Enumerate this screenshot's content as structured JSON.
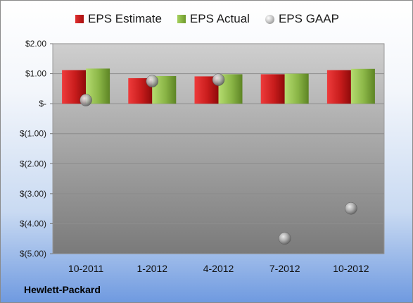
{
  "chart_data": {
    "type": "bar",
    "categories": [
      "10-2011",
      "1-2012",
      "4-2012",
      "7-2012",
      "10-2012"
    ],
    "series": [
      {
        "name": "EPS Estimate",
        "type": "bar",
        "values": [
          1.12,
          0.85,
          0.91,
          0.98,
          1.12
        ]
      },
      {
        "name": "EPS Actual",
        "type": "bar",
        "values": [
          1.17,
          0.92,
          0.98,
          1.0,
          1.16
        ]
      },
      {
        "name": "EPS GAAP",
        "type": "scatter",
        "values": [
          0.12,
          0.75,
          0.8,
          -4.49,
          -3.49
        ]
      }
    ],
    "ylim": [
      -5,
      2
    ],
    "yticks": [
      2,
      1,
      0,
      -1,
      -2,
      -3,
      -4,
      -5
    ],
    "ytick_labels": [
      "$2.00",
      "$1.00",
      "$-",
      "$(1.00)",
      "$(2.00)",
      "$(3.00)",
      "$(4.00)",
      "$(5.00)"
    ],
    "grid": true,
    "legend_position": "top",
    "colors": {
      "estimate": "#c81c1c",
      "actual": "#8ab546",
      "gaap": "#b0b0b0"
    }
  },
  "legend": {
    "estimate": "EPS Estimate",
    "actual": "EPS Actual",
    "gaap": "EPS GAAP"
  },
  "company": "Hewlett-Packard"
}
